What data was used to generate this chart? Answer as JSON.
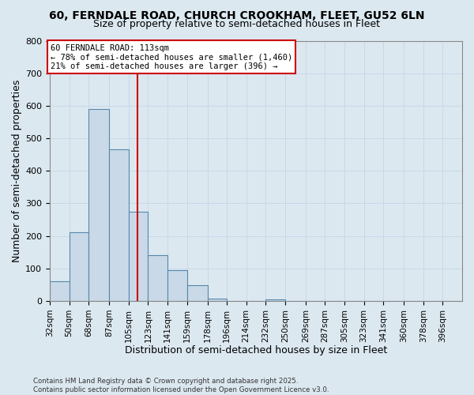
{
  "title_line1": "60, FERNDALE ROAD, CHURCH CROOKHAM, FLEET, GU52 6LN",
  "title_line2": "Size of property relative to semi-detached houses in Fleet",
  "xlabel": "Distribution of semi-detached houses by size in Fleet",
  "ylabel": "Number of semi-detached properties",
  "bin_labels": [
    "32sqm",
    "50sqm",
    "68sqm",
    "87sqm",
    "105sqm",
    "123sqm",
    "141sqm",
    "159sqm",
    "178sqm",
    "196sqm",
    "214sqm",
    "232sqm",
    "250sqm",
    "269sqm",
    "287sqm",
    "305sqm",
    "323sqm",
    "341sqm",
    "360sqm",
    "378sqm",
    "396sqm"
  ],
  "bin_edges": [
    32,
    50,
    68,
    87,
    105,
    123,
    141,
    159,
    178,
    196,
    214,
    232,
    250,
    269,
    287,
    305,
    323,
    341,
    360,
    378,
    396
  ],
  "bar_heights": [
    60,
    210,
    590,
    465,
    275,
    140,
    95,
    48,
    8,
    0,
    0,
    5,
    0,
    0,
    0,
    0,
    0,
    0,
    0,
    0,
    0
  ],
  "bar_color": "#c9d9e8",
  "bar_edgecolor": "#5588aa",
  "red_line_x": 113,
  "red_line_color": "#cc0000",
  "ylim": [
    0,
    800
  ],
  "yticks": [
    0,
    100,
    200,
    300,
    400,
    500,
    600,
    700,
    800
  ],
  "annotation_title": "60 FERNDALE ROAD: 113sqm",
  "annotation_line1": "← 78% of semi-detached houses are smaller (1,460)",
  "annotation_line2": "21% of semi-detached houses are larger (396) →",
  "annotation_box_color": "#cc0000",
  "annotation_bg": "#ffffff",
  "footnote1": "Contains HM Land Registry data © Crown copyright and database right 2025.",
  "footnote2": "Contains public sector information licensed under the Open Government Licence v3.0.",
  "grid_color": "#c8d8e8",
  "bg_color": "#dce8f0",
  "title_fontsize": 10,
  "subtitle_fontsize": 9
}
